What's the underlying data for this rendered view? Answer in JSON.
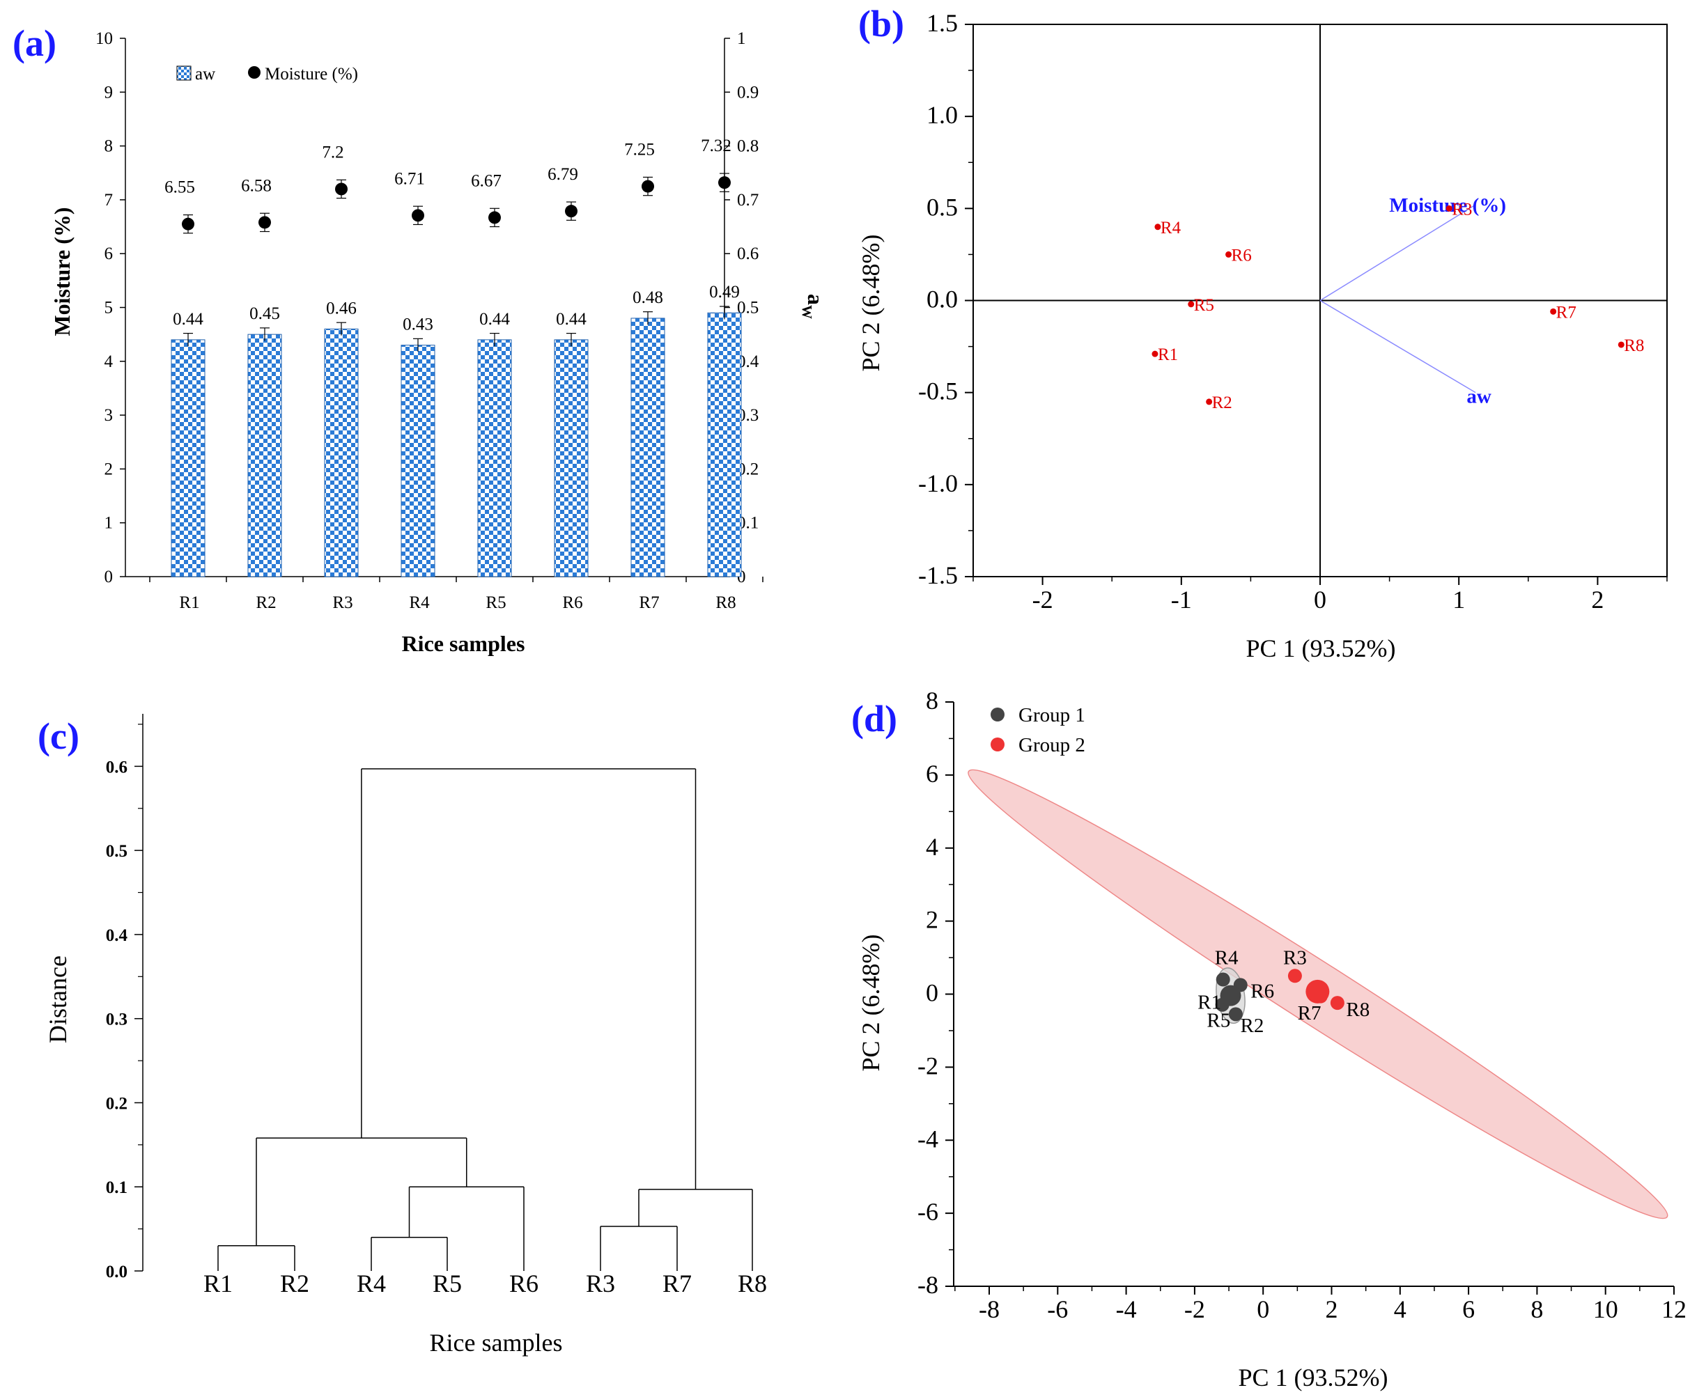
{
  "figure_labels": {
    "a": "(a)",
    "b": "(b)",
    "c": "(c)",
    "d": "(d)"
  },
  "colors": {
    "accent_blue": "#1a1aff",
    "bar_blue": "#2b7bd6",
    "red": "#e00000",
    "group1": "#444444",
    "group2": "#ee3333",
    "ellipse_fill": "#f7c9c9",
    "ellipse_stroke": "#ee8888",
    "vector_blue": "#8a8aff"
  },
  "chart_data": [
    {
      "id": "a",
      "type": "bar",
      "title": "",
      "categories": [
        "R1",
        "R2",
        "R3",
        "R4",
        "R5",
        "R6",
        "R7",
        "R8"
      ],
      "series": [
        {
          "name": "aw",
          "type": "bar",
          "axis": "right",
          "values": [
            0.44,
            0.45,
            0.46,
            0.43,
            0.44,
            0.44,
            0.48,
            0.49
          ],
          "error": 0.012
        },
        {
          "name": "Moisture (%)",
          "type": "scatter",
          "axis": "left",
          "values": [
            6.55,
            6.58,
            7.2,
            6.71,
            6.67,
            6.79,
            7.25,
            7.32
          ],
          "error": 0.17
        }
      ],
      "bar_value_labels": [
        "0.44",
        "0.45",
        "0.46",
        "0.43",
        "0.44",
        "0.44",
        "0.48",
        "0.49"
      ],
      "point_value_labels": [
        "6.55",
        "6.58",
        "7.2",
        "6.71",
        "6.67",
        "6.79",
        "7.25",
        "7.32"
      ],
      "xlabel": "Rice samples",
      "ylabel": "Moisture (%)",
      "ylabel_right_main": "a",
      "ylabel_right_sub": "W",
      "ylim": [
        0,
        10
      ],
      "ylim_right": [
        0,
        1
      ],
      "yticks": [
        "0",
        "1",
        "2",
        "3",
        "4",
        "5",
        "6",
        "7",
        "8",
        "9",
        "10"
      ],
      "yticks_right": [
        "0",
        "0.1",
        "0.2",
        "0.3",
        "0.4",
        "0.5",
        "0.6",
        "0.7",
        "0.8",
        "0.9",
        "1"
      ],
      "legend": {
        "position": "top-left",
        "entries": [
          "aw",
          "Moisture (%)"
        ]
      }
    },
    {
      "id": "b",
      "type": "scatter",
      "title": "",
      "xlabel": "PC 1 (93.52%)",
      "ylabel": "PC 2 (6.48%)",
      "xlim": [
        -2.5,
        2.5
      ],
      "ylim": [
        -1.5,
        1.5
      ],
      "xticks": [
        "-2",
        "-1",
        "0",
        "1",
        "2"
      ],
      "yticks": [
        "-1.5",
        "-1.0",
        "-0.5",
        "0.0",
        "0.5",
        "1.0",
        "1.5"
      ],
      "points": [
        {
          "label": "R1",
          "x": -1.19,
          "y": -0.29
        },
        {
          "label": "R2",
          "x": -0.8,
          "y": -0.55
        },
        {
          "label": "R3",
          "x": 0.93,
          "y": 0.5
        },
        {
          "label": "R4",
          "x": -1.17,
          "y": 0.4
        },
        {
          "label": "R5",
          "x": -0.93,
          "y": -0.02
        },
        {
          "label": "R6",
          "x": -0.66,
          "y": 0.25
        },
        {
          "label": "R7",
          "x": 1.68,
          "y": -0.06
        },
        {
          "label": "R8",
          "x": 2.17,
          "y": -0.24
        }
      ],
      "vectors": [
        {
          "label": "Moisture (%)",
          "x": 1.12,
          "y": 0.52
        },
        {
          "label": "aw",
          "x": 1.12,
          "y": -0.5
        }
      ]
    },
    {
      "id": "c",
      "type": "dendrogram",
      "title": "",
      "xlabel": "Rice samples",
      "ylabel": "Distance",
      "ylim": [
        0,
        0.65
      ],
      "yticks": [
        "0.0",
        "0.1",
        "0.2",
        "0.3",
        "0.4",
        "0.5",
        "0.6"
      ],
      "leaves": [
        "R1",
        "R2",
        "R4",
        "R5",
        "R6",
        "R3",
        "R7",
        "R8"
      ],
      "merges": [
        {
          "left": "R1",
          "right": "R2",
          "height": 0.03
        },
        {
          "left": "R4",
          "right": "R5",
          "height": 0.04
        },
        {
          "left": "R3",
          "right": "R7",
          "height": 0.053
        },
        {
          "left": "(R4,R5)",
          "right": "R6",
          "height": 0.1
        },
        {
          "left": "(R3,R7)",
          "right": "R8",
          "height": 0.097
        },
        {
          "left": "(R1,R2)",
          "right": "(R4,R5,R6)",
          "height": 0.158
        },
        {
          "left": "(R1,R2,R4,R5,R6)",
          "right": "(R3,R7,R8)",
          "height": 0.597
        }
      ]
    },
    {
      "id": "d",
      "type": "scatter",
      "title": "",
      "xlabel": "PC 1 (93.52%)",
      "ylabel": "PC 2 (6.48%)",
      "xlim": [
        -9,
        12.2
      ],
      "ylim": [
        -8,
        8
      ],
      "xticks": [
        "-8",
        "-6",
        "-4",
        "-2",
        "0",
        "2",
        "4",
        "6",
        "8",
        "10",
        "12"
      ],
      "yticks": [
        "-8",
        "-6",
        "-4",
        "-2",
        "0",
        "2",
        "4",
        "6",
        "8"
      ],
      "legend": {
        "position": "top-left",
        "entries": [
          "Group 1",
          "Group 2"
        ]
      },
      "groups": [
        {
          "name": "Group 1",
          "points": [
            {
              "label": "R1",
              "x": -1.19,
              "y": -0.29
            },
            {
              "label": "R2",
              "x": -0.8,
              "y": -0.55
            },
            {
              "label": "R4",
              "x": -1.17,
              "y": 0.4
            },
            {
              "label": "R5",
              "x": -0.93,
              "y": -0.02
            },
            {
              "label": "R6",
              "x": -0.66,
              "y": 0.25
            }
          ],
          "centroid": {
            "x": -0.95,
            "y": -0.04
          }
        },
        {
          "name": "Group 2",
          "points": [
            {
              "label": "R3",
              "x": 0.93,
              "y": 0.5
            },
            {
              "label": "R7",
              "x": 1.68,
              "y": -0.06
            },
            {
              "label": "R8",
              "x": 2.17,
              "y": -0.24
            }
          ],
          "centroid": {
            "x": 1.59,
            "y": 0.07
          }
        }
      ],
      "point_labels": [
        "R4",
        "R3",
        "R1",
        "R6",
        "R5",
        "R2",
        "R7",
        "R8"
      ]
    }
  ]
}
